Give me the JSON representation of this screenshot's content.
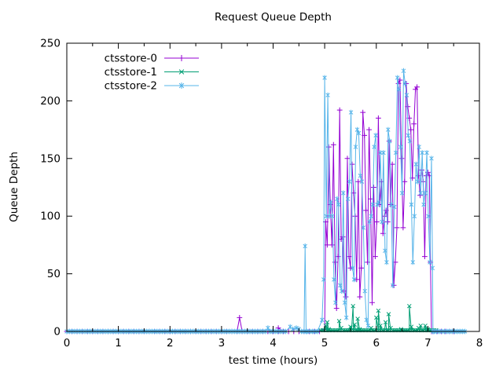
{
  "window": {
    "background": "#ffffff",
    "text_color": "#000000",
    "axis_color": "#000000"
  },
  "chart_data": {
    "type": "line",
    "title": "Request Queue Depth",
    "xlabel": "test time (hours)",
    "ylabel": "Queue Depth",
    "xlim": [
      0,
      8
    ],
    "ylim": [
      0,
      250
    ],
    "xticks": [
      0,
      1,
      2,
      3,
      4,
      5,
      6,
      7,
      8
    ],
    "x_minor_step": 0.5,
    "yticks": [
      0,
      50,
      100,
      150,
      200,
      250
    ],
    "grid": false,
    "legend_position": "top-left-inside",
    "legend": [
      "ctsstore-0",
      "ctsstore-1",
      "ctsstore-2"
    ],
    "series": [
      {
        "name": "ctsstore-0",
        "color": "#9400d3",
        "marker": "plus",
        "baseline_runs": [
          {
            "t0": 0.0,
            "t1": 3.3,
            "step": 0.1,
            "v": 0
          },
          {
            "t0": 3.4,
            "t1": 4.95,
            "step": 0.1,
            "v": 0
          },
          {
            "t0": 7.1,
            "t1": 7.5,
            "step": 0.08,
            "v": 0
          }
        ],
        "points": [
          [
            3.35,
            12
          ],
          [
            4.1,
            3
          ],
          [
            5.0,
            2
          ],
          [
            5.02,
            95
          ],
          [
            5.05,
            75
          ],
          [
            5.08,
            160
          ],
          [
            5.11,
            110
          ],
          [
            5.14,
            75
          ],
          [
            5.17,
            162
          ],
          [
            5.2,
            60
          ],
          [
            5.23,
            20
          ],
          [
            5.26,
            65
          ],
          [
            5.29,
            192
          ],
          [
            5.32,
            80
          ],
          [
            5.35,
            82
          ],
          [
            5.38,
            35
          ],
          [
            5.41,
            30
          ],
          [
            5.44,
            150
          ],
          [
            5.47,
            65
          ],
          [
            5.5,
            55
          ],
          [
            5.53,
            145
          ],
          [
            5.56,
            120
          ],
          [
            5.59,
            100
          ],
          [
            5.62,
            45
          ],
          [
            5.65,
            130
          ],
          [
            5.68,
            30
          ],
          [
            5.71,
            55
          ],
          [
            5.74,
            190
          ],
          [
            5.77,
            170
          ],
          [
            5.8,
            105
          ],
          [
            5.83,
            60
          ],
          [
            5.86,
            175
          ],
          [
            5.89,
            115
          ],
          [
            5.92,
            25
          ],
          [
            5.95,
            125
          ],
          [
            5.98,
            65
          ],
          [
            6.01,
            95
          ],
          [
            6.04,
            185
          ],
          [
            6.07,
            110
          ],
          [
            6.1,
            130
          ],
          [
            6.13,
            85
          ],
          [
            6.16,
            100
          ],
          [
            6.19,
            105
          ],
          [
            6.22,
            95
          ],
          [
            6.25,
            165
          ],
          [
            6.28,
            110
          ],
          [
            6.31,
            145
          ],
          [
            6.34,
            40
          ],
          [
            6.37,
            60
          ],
          [
            6.4,
            90
          ],
          [
            6.43,
            215
          ],
          [
            6.46,
            218
          ],
          [
            6.49,
            150
          ],
          [
            6.52,
            90
          ],
          [
            6.55,
            130
          ],
          [
            6.58,
            215
          ],
          [
            6.61,
            195
          ],
          [
            6.64,
            185
          ],
          [
            6.67,
            175
          ],
          [
            6.7,
            133
          ],
          [
            6.73,
            180
          ],
          [
            6.76,
            210
          ],
          [
            6.79,
            212
          ],
          [
            6.82,
            135
          ],
          [
            6.85,
            118
          ],
          [
            6.88,
            140
          ],
          [
            6.91,
            130
          ],
          [
            6.94,
            65
          ],
          [
            6.97,
            135
          ],
          [
            7.0,
            138
          ],
          [
            7.03,
            135
          ],
          [
            7.05,
            60
          ],
          [
            7.07,
            0
          ]
        ]
      },
      {
        "name": "ctsstore-1",
        "color": "#009e73",
        "marker": "cross",
        "baseline_runs": [
          {
            "t0": 4.92,
            "t1": 7.16,
            "step": 0.04,
            "v": 1
          }
        ],
        "points": [
          [
            5.02,
            5
          ],
          [
            5.05,
            8
          ],
          [
            5.08,
            2
          ],
          [
            5.28,
            9
          ],
          [
            5.32,
            3
          ],
          [
            5.5,
            4
          ],
          [
            5.55,
            22
          ],
          [
            5.58,
            6
          ],
          [
            5.64,
            11
          ],
          [
            5.68,
            2
          ],
          [
            5.9,
            3
          ],
          [
            6.0,
            12
          ],
          [
            6.04,
            18
          ],
          [
            6.08,
            5
          ],
          [
            6.18,
            8
          ],
          [
            6.24,
            15
          ],
          [
            6.28,
            3
          ],
          [
            6.48,
            2
          ],
          [
            6.64,
            22
          ],
          [
            6.68,
            4
          ],
          [
            6.82,
            3
          ],
          [
            6.86,
            5
          ],
          [
            6.95,
            5
          ],
          [
            7.0,
            2
          ]
        ]
      },
      {
        "name": "ctsstore-2",
        "color": "#56b4e9",
        "marker": "asterisk",
        "baseline_runs": [
          {
            "t0": 0.0,
            "t1": 3.86,
            "step": 0.05,
            "v": 0
          },
          {
            "t0": 3.94,
            "t1": 4.28,
            "step": 0.05,
            "v": 0
          },
          {
            "t0": 4.66,
            "t1": 4.9,
            "step": 0.05,
            "v": 0
          },
          {
            "t0": 7.12,
            "t1": 7.74,
            "step": 0.05,
            "v": 0
          }
        ],
        "points": [
          [
            3.9,
            3
          ],
          [
            4.33,
            4
          ],
          [
            4.38,
            2
          ],
          [
            4.45,
            3
          ],
          [
            4.5,
            2
          ],
          [
            4.55,
            0
          ],
          [
            4.6,
            0
          ],
          [
            4.62,
            74
          ],
          [
            4.64,
            0
          ],
          [
            4.95,
            10
          ],
          [
            4.98,
            45
          ],
          [
            5.0,
            220
          ],
          [
            5.03,
            100
          ],
          [
            5.06,
            205
          ],
          [
            5.09,
            100
          ],
          [
            5.12,
            112
          ],
          [
            5.15,
            100
          ],
          [
            5.18,
            45
          ],
          [
            5.21,
            25
          ],
          [
            5.24,
            115
          ],
          [
            5.27,
            110
          ],
          [
            5.3,
            40
          ],
          [
            5.33,
            35
          ],
          [
            5.36,
            120
          ],
          [
            5.39,
            25
          ],
          [
            5.42,
            12
          ],
          [
            5.45,
            115
          ],
          [
            5.48,
            130
          ],
          [
            5.51,
            190
          ],
          [
            5.54,
            55
          ],
          [
            5.57,
            45
          ],
          [
            5.6,
            160
          ],
          [
            5.63,
            175
          ],
          [
            5.66,
            172
          ],
          [
            5.69,
            135
          ],
          [
            5.72,
            130
          ],
          [
            5.75,
            90
          ],
          [
            5.78,
            35
          ],
          [
            5.81,
            10
          ],
          [
            5.84,
            5
          ],
          [
            5.87,
            95
          ],
          [
            5.9,
            100
          ],
          [
            5.93,
            110
          ],
          [
            5.96,
            160
          ],
          [
            5.99,
            170
          ],
          [
            6.02,
            110
          ],
          [
            6.05,
            112
          ],
          [
            6.08,
            155
          ],
          [
            6.11,
            95
          ],
          [
            6.14,
            155
          ],
          [
            6.17,
            70
          ],
          [
            6.2,
            60
          ],
          [
            6.23,
            175
          ],
          [
            6.26,
            165
          ],
          [
            6.29,
            110
          ],
          [
            6.32,
            40
          ],
          [
            6.35,
            108
          ],
          [
            6.38,
            155
          ],
          [
            6.41,
            220
          ],
          [
            6.44,
            210
          ],
          [
            6.47,
            160
          ],
          [
            6.5,
            120
          ],
          [
            6.53,
            226
          ],
          [
            6.56,
            215
          ],
          [
            6.59,
            205
          ],
          [
            6.62,
            170
          ],
          [
            6.65,
            165
          ],
          [
            6.68,
            110
          ],
          [
            6.71,
            60
          ],
          [
            6.74,
            100
          ],
          [
            6.77,
            145
          ],
          [
            6.8,
            130
          ],
          [
            6.83,
            160
          ],
          [
            6.86,
            120
          ],
          [
            6.89,
            155
          ],
          [
            6.92,
            110
          ],
          [
            6.95,
            120
          ],
          [
            6.98,
            155
          ],
          [
            7.01,
            100
          ],
          [
            7.04,
            60
          ],
          [
            7.07,
            150
          ],
          [
            7.09,
            55
          ],
          [
            7.1,
            0
          ]
        ]
      }
    ]
  }
}
